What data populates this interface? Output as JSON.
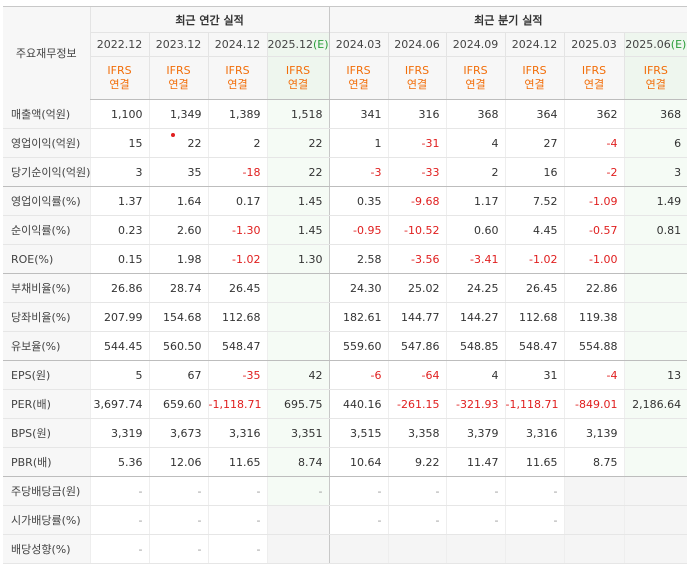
{
  "header": {
    "row_label": "주요재무정보",
    "annual_title": "최근 연간 실적",
    "quarter_title": "최근 분기 실적",
    "periods": [
      {
        "label": "2022.12",
        "est": ""
      },
      {
        "label": "2023.12",
        "est": ""
      },
      {
        "label": "2024.12",
        "est": ""
      },
      {
        "label": "2025.12",
        "est": "(E)"
      },
      {
        "label": "2024.03",
        "est": ""
      },
      {
        "label": "2024.06",
        "est": ""
      },
      {
        "label": "2024.09",
        "est": ""
      },
      {
        "label": "2024.12",
        "est": ""
      },
      {
        "label": "2025.03",
        "est": ""
      },
      {
        "label": "2025.06",
        "est": "(E)"
      }
    ],
    "ifrs": "IFRS",
    "consol": "연결"
  },
  "rows": [
    {
      "label": "매출액(억원)",
      "values": [
        "1,100",
        "1,349",
        "1,389",
        "1,518",
        "341",
        "316",
        "368",
        "364",
        "362",
        "368"
      ]
    },
    {
      "label": "영업이익(억원)",
      "values": [
        "15",
        "22",
        "2",
        "22",
        "1",
        "-31",
        "4",
        "27",
        "-4",
        "6"
      ]
    },
    {
      "label": "당기순이익(억원)",
      "values": [
        "3",
        "35",
        "-18",
        "22",
        "-3",
        "-33",
        "2",
        "16",
        "-2",
        "3"
      ]
    },
    {
      "label": "영업이익률(%)",
      "values": [
        "1.37",
        "1.64",
        "0.17",
        "1.45",
        "0.35",
        "-9.68",
        "1.17",
        "7.52",
        "-1.09",
        "1.49"
      ]
    },
    {
      "label": "순이익률(%)",
      "values": [
        "0.23",
        "2.60",
        "-1.30",
        "1.45",
        "-0.95",
        "-10.52",
        "0.60",
        "4.45",
        "-0.57",
        "0.81"
      ]
    },
    {
      "label": "ROE(%)",
      "values": [
        "0.15",
        "1.98",
        "-1.02",
        "1.30",
        "2.58",
        "-3.56",
        "-3.41",
        "-1.02",
        "-1.00",
        ""
      ]
    },
    {
      "label": "부채비율(%)",
      "values": [
        "26.86",
        "28.74",
        "26.45",
        "",
        "24.30",
        "25.02",
        "24.25",
        "26.45",
        "22.86",
        ""
      ]
    },
    {
      "label": "당좌비율(%)",
      "values": [
        "207.99",
        "154.68",
        "112.68",
        "",
        "182.61",
        "144.77",
        "144.27",
        "112.68",
        "119.38",
        ""
      ]
    },
    {
      "label": "유보율(%)",
      "values": [
        "544.45",
        "560.50",
        "548.47",
        "",
        "559.60",
        "547.86",
        "548.85",
        "548.47",
        "554.88",
        ""
      ]
    },
    {
      "label": "EPS(원)",
      "values": [
        "5",
        "67",
        "-35",
        "42",
        "-6",
        "-64",
        "4",
        "31",
        "-4",
        "13"
      ]
    },
    {
      "label": "PER(배)",
      "values": [
        "3,697.74",
        "659.60",
        "-1,118.71",
        "695.75",
        "440.16",
        "-261.15",
        "-321.93",
        "-1,118.71",
        "-849.01",
        "2,186.64"
      ]
    },
    {
      "label": "BPS(원)",
      "values": [
        "3,319",
        "3,673",
        "3,316",
        "3,351",
        "3,515",
        "3,358",
        "3,379",
        "3,316",
        "3,139",
        ""
      ]
    },
    {
      "label": "PBR(배)",
      "values": [
        "5.36",
        "12.06",
        "11.65",
        "8.74",
        "10.64",
        "9.22",
        "11.47",
        "11.65",
        "8.75",
        ""
      ]
    },
    {
      "label": "주당배당금(원)",
      "values": [
        "-",
        "-",
        "-",
        "-",
        "-",
        "-",
        "-",
        "-",
        "",
        ""
      ]
    },
    {
      "label": "시가배당률(%)",
      "values": [
        "-",
        "-",
        "-",
        "",
        "-",
        "-",
        "-",
        "-",
        "",
        ""
      ]
    },
    {
      "label": "배당성향(%)",
      "values": [
        "-",
        "-",
        "-",
        "",
        "",
        "",
        "",
        "",
        "",
        ""
      ]
    }
  ],
  "colors": {
    "negative": "#e01f1f",
    "ifrs": "#f26e0a",
    "estimate_bg": "#eef6ee",
    "estimate_mark": "#2a9d3a"
  }
}
